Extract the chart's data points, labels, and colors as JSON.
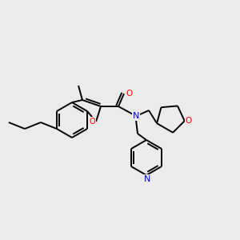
{
  "bg_color": "#ebebeb",
  "bond_color": "#000000",
  "bond_width": 1.4,
  "atom_colors": {
    "O": "#ff0000",
    "N": "#0000ff"
  },
  "fig_size": [
    3.0,
    3.0
  ],
  "dpi": 100
}
